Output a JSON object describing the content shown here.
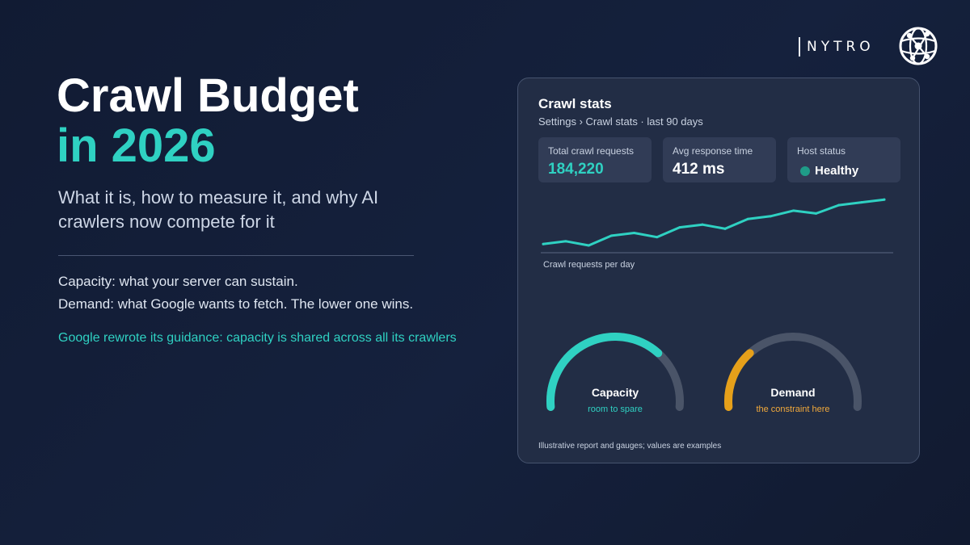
{
  "brand": {
    "name": "NYTRO",
    "logo_icon": "globe-network-icon"
  },
  "hero": {
    "title_line1": "Crawl Budget",
    "title_line2": "in 2026",
    "subtitle": "What it is, how to measure it, and why AI crawlers now compete for it",
    "point1": "Capacity: what your server can sustain.",
    "point2": "Demand: what Google wants to fetch. The lower one wins.",
    "note": "Google rewrote its guidance: capacity is shared across all its crawlers"
  },
  "report": {
    "title": "Crawl stats",
    "breadcrumb": "Settings › Crawl stats · last 90 days",
    "stats": [
      {
        "label": "Total crawl requests",
        "value": "184,220"
      },
      {
        "label": "Avg response time",
        "value": "412 ms"
      },
      {
        "label": "Host status",
        "value": "Healthy"
      }
    ],
    "chart_caption": "Crawl requests per day",
    "footnote": "Illustrative report and gauges; values are examples"
  },
  "gauges": [
    {
      "label": "Capacity",
      "sub": "room to spare",
      "fraction": 0.72,
      "color": "#2fd1c2",
      "sub_color": "#2fd1c2"
    },
    {
      "label": "Demand",
      "sub": "the constraint here",
      "fraction": 0.28,
      "color": "#e6a01a",
      "sub_color": "#f2a93b"
    }
  ],
  "colors": {
    "accent": "#2fd1c2",
    "warning": "#e6a01a",
    "status_ok": "#1f9c88"
  },
  "chart_data": {
    "type": "line",
    "x": [
      1,
      2,
      3,
      4,
      5,
      6,
      7,
      8,
      9,
      10,
      11,
      12,
      13,
      14,
      15,
      16
    ],
    "series": [
      {
        "values": [
          1,
          3,
          0,
          7,
          9,
          6,
          13,
          15,
          12,
          19,
          21,
          25,
          23,
          29,
          31,
          33
        ]
      }
    ],
    "xlabel": "Crawl requests per day",
    "ylabel": "",
    "ylim": [
      0,
      36
    ],
    "grid": false
  }
}
